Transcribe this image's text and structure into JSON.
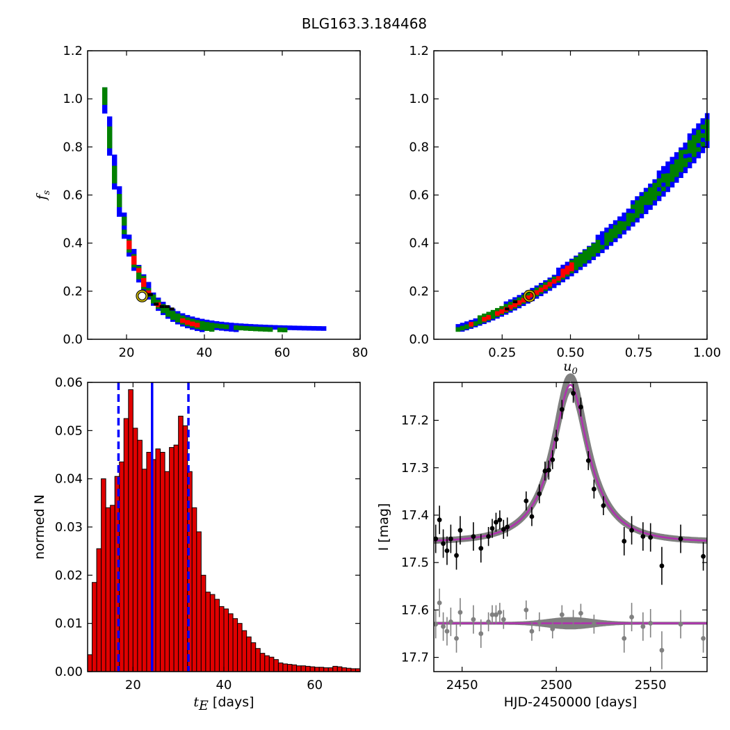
{
  "figure_title": "BLG163.3.184468",
  "chart_data": [
    {
      "type": "heatmap",
      "panel": "top-left",
      "xlabel": "",
      "ylabel": "f_s",
      "xlim": [
        10,
        80
      ],
      "ylim": [
        0.0,
        1.2
      ],
      "xticks": [
        "20",
        "40",
        "60",
        "80"
      ],
      "yticks": [
        "0.0",
        "0.2",
        "0.4",
        "0.6",
        "0.8",
        "1.0",
        "1.2"
      ],
      "colors": {
        "sigma3": "#0000ff",
        "sigma2": "#008000",
        "sigma1": "#ff0000",
        "best_cells": "#000000"
      },
      "marker": {
        "x": 24,
        "y": 0.18,
        "color": "#c8b400"
      }
    },
    {
      "type": "heatmap",
      "panel": "top-right",
      "xlabel": "u_0",
      "ylabel": "",
      "xlim": [
        0.0,
        1.0
      ],
      "ylim": [
        0.0,
        1.2
      ],
      "xticks": [
        "0.25",
        "0.50",
        "0.75",
        "1.00"
      ],
      "yticks": [
        "0.0",
        "0.2",
        "0.4",
        "0.6",
        "0.8",
        "1.0",
        "1.2"
      ],
      "colors": {
        "sigma3": "#0000ff",
        "sigma2": "#008000",
        "sigma1": "#ff0000",
        "best_cells": "#000000"
      },
      "marker": {
        "x": 0.35,
        "y": 0.18,
        "color": "#c8b400"
      }
    },
    {
      "type": "bar",
      "panel": "bottom-left",
      "xlabel": "t_E",
      "xlabel_suffix": "[days]",
      "ylabel": "normed N",
      "xlim": [
        10,
        70
      ],
      "ylim": [
        0.0,
        0.06
      ],
      "xticks": [
        "20",
        "40",
        "60"
      ],
      "yticks": [
        "0.00",
        "0.01",
        "0.02",
        "0.03",
        "0.04",
        "0.05",
        "0.06"
      ],
      "bin_start": 10,
      "bin_width": 1,
      "values": [
        0.0035,
        0.0185,
        0.0255,
        0.04,
        0.034,
        0.0345,
        0.0405,
        0.0435,
        0.0525,
        0.0585,
        0.0505,
        0.048,
        0.042,
        0.0455,
        0.044,
        0.0462,
        0.0455,
        0.0415,
        0.0465,
        0.047,
        0.053,
        0.051,
        0.0415,
        0.034,
        0.029,
        0.02,
        0.0165,
        0.016,
        0.015,
        0.0135,
        0.013,
        0.012,
        0.011,
        0.01,
        0.0085,
        0.0072,
        0.006,
        0.0048,
        0.0038,
        0.0033,
        0.003,
        0.0025,
        0.0018,
        0.0016,
        0.0015,
        0.0014,
        0.0012,
        0.0012,
        0.0011,
        0.001,
        0.0009,
        0.0009,
        0.0008,
        0.0008,
        0.0011,
        0.001,
        0.0008,
        0.0007,
        0.0006,
        0.0006
      ],
      "bar_color": "#e00000",
      "solid_line_x": 24.2,
      "dashed_lines_x": [
        16.8,
        32.2
      ],
      "line_color": "#0000ff"
    },
    {
      "type": "scatter",
      "panel": "bottom-right",
      "xlabel": "HJD-2450000 [days]",
      "ylabel": "I [mag]",
      "xlim": [
        2435,
        2580
      ],
      "ylim": [
        17.73,
        17.12
      ],
      "xticks": [
        "2450",
        "2500",
        "2550"
      ],
      "yticks": [
        "17.2",
        "17.3",
        "17.4",
        "17.5",
        "17.6",
        "17.7"
      ],
      "model": {
        "t0": 2507.5,
        "tE": 24,
        "u0": 0.35,
        "fs": 0.18,
        "baseline": 17.457
      },
      "residual_baseline": 17.628,
      "model_color": "#b030b0",
      "band_color": "#808080",
      "data_points": [
        {
          "x": 2436,
          "y": 17.45,
          "err": 0.03
        },
        {
          "x": 2438,
          "y": 17.41,
          "err": 0.03
        },
        {
          "x": 2440,
          "y": 17.46,
          "err": 0.03
        },
        {
          "x": 2442,
          "y": 17.475,
          "err": 0.03
        },
        {
          "x": 2444,
          "y": 17.45,
          "err": 0.03
        },
        {
          "x": 2447,
          "y": 17.485,
          "err": 0.03
        },
        {
          "x": 2449,
          "y": 17.432,
          "err": 0.03
        },
        {
          "x": 2456,
          "y": 17.445,
          "err": 0.03
        },
        {
          "x": 2460,
          "y": 17.47,
          "err": 0.03
        },
        {
          "x": 2464,
          "y": 17.445,
          "err": 0.02
        },
        {
          "x": 2466,
          "y": 17.428,
          "err": 0.02
        },
        {
          "x": 2468,
          "y": 17.415,
          "err": 0.02
        },
        {
          "x": 2470,
          "y": 17.41,
          "err": 0.02
        },
        {
          "x": 2472,
          "y": 17.43,
          "err": 0.02
        },
        {
          "x": 2474,
          "y": 17.425,
          "err": 0.02
        },
        {
          "x": 2484,
          "y": 17.37,
          "err": 0.02
        },
        {
          "x": 2487,
          "y": 17.403,
          "err": 0.02
        },
        {
          "x": 2491,
          "y": 17.355,
          "err": 0.02
        },
        {
          "x": 2494,
          "y": 17.307,
          "err": 0.02
        },
        {
          "x": 2496,
          "y": 17.305,
          "err": 0.02
        },
        {
          "x": 2498,
          "y": 17.283,
          "err": 0.02
        },
        {
          "x": 2500,
          "y": 17.24,
          "err": 0.02
        },
        {
          "x": 2503,
          "y": 17.177,
          "err": 0.02
        },
        {
          "x": 2509,
          "y": 17.143,
          "err": 0.02
        },
        {
          "x": 2513,
          "y": 17.172,
          "err": 0.02
        },
        {
          "x": 2517,
          "y": 17.285,
          "err": 0.02
        },
        {
          "x": 2520,
          "y": 17.345,
          "err": 0.02
        },
        {
          "x": 2525,
          "y": 17.38,
          "err": 0.02
        },
        {
          "x": 2536,
          "y": 17.455,
          "err": 0.03
        },
        {
          "x": 2540,
          "y": 17.432,
          "err": 0.03
        },
        {
          "x": 2546,
          "y": 17.445,
          "err": 0.03
        },
        {
          "x": 2550,
          "y": 17.447,
          "err": 0.03
        },
        {
          "x": 2556,
          "y": 17.507,
          "err": 0.04
        },
        {
          "x": 2566,
          "y": 17.45,
          "err": 0.03
        },
        {
          "x": 2578,
          "y": 17.487,
          "err": 0.03
        }
      ],
      "residual_points": [
        {
          "x": 2436,
          "y": 17.63,
          "err": 0.03
        },
        {
          "x": 2438,
          "y": 17.585,
          "err": 0.03
        },
        {
          "x": 2440,
          "y": 17.635,
          "err": 0.03
        },
        {
          "x": 2442,
          "y": 17.645,
          "err": 0.03
        },
        {
          "x": 2444,
          "y": 17.625,
          "err": 0.03
        },
        {
          "x": 2447,
          "y": 17.66,
          "err": 0.03
        },
        {
          "x": 2449,
          "y": 17.605,
          "err": 0.03
        },
        {
          "x": 2456,
          "y": 17.62,
          "err": 0.03
        },
        {
          "x": 2460,
          "y": 17.65,
          "err": 0.03
        },
        {
          "x": 2464,
          "y": 17.625,
          "err": 0.02
        },
        {
          "x": 2466,
          "y": 17.61,
          "err": 0.02
        },
        {
          "x": 2468,
          "y": 17.61,
          "err": 0.02
        },
        {
          "x": 2470,
          "y": 17.605,
          "err": 0.02
        },
        {
          "x": 2472,
          "y": 17.62,
          "err": 0.02
        },
        {
          "x": 2484,
          "y": 17.6,
          "err": 0.02
        },
        {
          "x": 2487,
          "y": 17.645,
          "err": 0.02
        },
        {
          "x": 2491,
          "y": 17.625,
          "err": 0.02
        },
        {
          "x": 2498,
          "y": 17.64,
          "err": 0.02
        },
        {
          "x": 2503,
          "y": 17.61,
          "err": 0.02
        },
        {
          "x": 2509,
          "y": 17.62,
          "err": 0.02
        },
        {
          "x": 2513,
          "y": 17.607,
          "err": 0.02
        },
        {
          "x": 2520,
          "y": 17.63,
          "err": 0.02
        },
        {
          "x": 2536,
          "y": 17.66,
          "err": 0.03
        },
        {
          "x": 2540,
          "y": 17.615,
          "err": 0.03
        },
        {
          "x": 2546,
          "y": 17.635,
          "err": 0.03
        },
        {
          "x": 2550,
          "y": 17.628,
          "err": 0.03
        },
        {
          "x": 2556,
          "y": 17.685,
          "err": 0.04
        },
        {
          "x": 2566,
          "y": 17.63,
          "err": 0.03
        },
        {
          "x": 2578,
          "y": 17.66,
          "err": 0.03
        }
      ]
    }
  ]
}
